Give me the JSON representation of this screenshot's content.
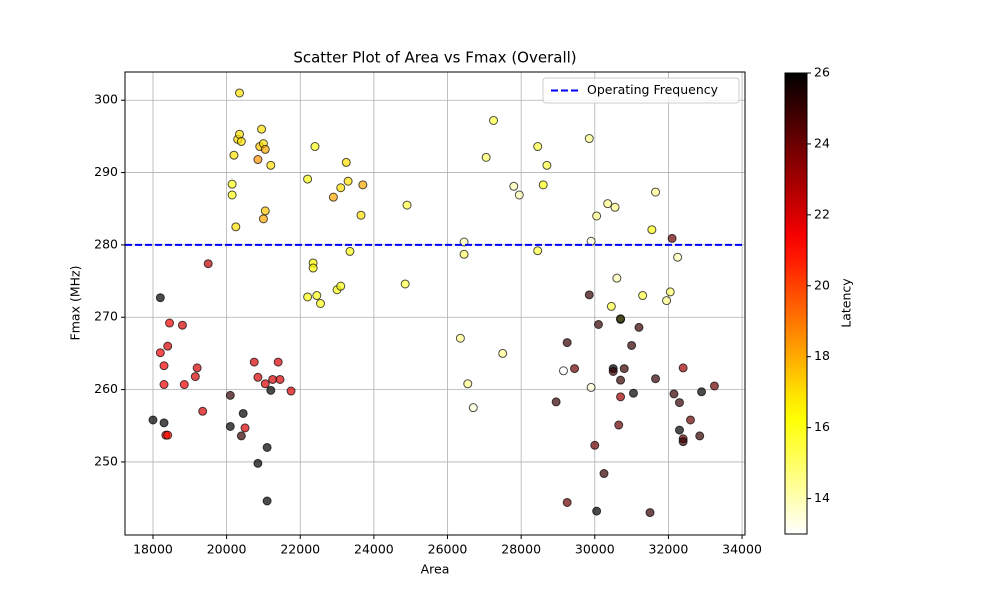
{
  "chart_data": {
    "type": "scatter",
    "title": "Scatter Plot of Area vs Fmax (Overall)",
    "xlabel": "Area",
    "ylabel": "Fmax (MHz)",
    "x": [
      18200,
      18300,
      18300,
      18400,
      18450,
      18800,
      18850,
      19150,
      19200,
      19350,
      19500,
      18350,
      18400,
      18000,
      18300,
      18200,
      20100,
      20100,
      20400,
      20450,
      20500,
      20850,
      21100,
      21100,
      21200,
      20750,
      20850,
      21050,
      21250,
      21400,
      21450,
      21750,
      20150,
      20150,
      20200,
      20250,
      20300,
      20350,
      20350,
      20400,
      20850,
      20900,
      20950,
      21000,
      21000,
      21050,
      21050,
      21200,
      22200,
      22200,
      22350,
      22350,
      22400,
      22450,
      22550,
      22900,
      23000,
      23100,
      23100,
      23250,
      23300,
      23350,
      23650,
      23700,
      24850,
      24900,
      26350,
      26450,
      26450,
      26550,
      26700,
      27050,
      27250,
      27500,
      27800,
      27950,
      28450,
      28450,
      28600,
      28700,
      29850,
      29900,
      30050,
      30350,
      30550,
      30600,
      30450,
      30700,
      31300,
      31550,
      31650,
      31950,
      32050,
      32250,
      29150,
      29900,
      28950,
      29250,
      29250,
      29450,
      29850,
      30000,
      30050,
      30100,
      30250,
      30500,
      30500,
      30650,
      30700,
      30700,
      30700,
      30800,
      31000,
      31050,
      31200,
      31500,
      31650,
      32100,
      32150,
      32300,
      32300,
      32400,
      32400,
      32400,
      32600,
      32850,
      32900,
      33250
    ],
    "y": [
      265.1,
      263.3,
      260.7,
      266,
      269.2,
      268.9,
      260.7,
      261.8,
      263,
      257,
      277.4,
      253.7,
      253.7,
      255.8,
      255.4,
      272.7,
      259.2,
      254.9,
      253.6,
      256.7,
      254.7,
      249.8,
      252,
      244.6,
      259.9,
      263.8,
      261.7,
      260.8,
      261.4,
      263.8,
      261.4,
      259.8,
      286.9,
      288.4,
      292.4,
      282.5,
      294.6,
      295.3,
      301,
      294.3,
      291.8,
      293.6,
      296,
      294,
      283.6,
      293.2,
      284.7,
      291,
      289.1,
      272.8,
      277.5,
      276.8,
      293.6,
      273,
      271.9,
      286.6,
      273.8,
      274.3,
      287.9,
      291.4,
      288.8,
      279.1,
      284.1,
      288.3,
      274.6,
      285.5,
      267.1,
      280.4,
      278.7,
      260.8,
      257.5,
      292.1,
      297.2,
      265,
      288.1,
      286.9,
      293.6,
      279.2,
      288.3,
      291,
      294.7,
      280.5,
      284,
      285.7,
      285.2,
      275.4,
      271.5,
      269.8,
      273,
      282.1,
      287.3,
      272.3,
      273.5,
      278.3,
      262.6,
      260.3,
      258.3,
      266.5,
      244.4,
      262.9,
      273.1,
      252.3,
      243.2,
      269,
      248.4,
      262.9,
      262.5,
      255.1,
      259,
      261.3,
      269.7,
      262.9,
      266.1,
      259.5,
      268.6,
      243,
      261.5,
      280.9,
      259.4,
      258.2,
      254.4,
      263,
      253.2,
      252.8,
      255.8,
      253.6,
      259.7,
      260.5
    ],
    "color_values": [
      21.5,
      21.5,
      21.5,
      22,
      21.5,
      22,
      21.5,
      22,
      22,
      22,
      22.5,
      22,
      21,
      26,
      26,
      26,
      25,
      26,
      25,
      26,
      22,
      26,
      26,
      26,
      26,
      22,
      22,
      22,
      22,
      22,
      22,
      22,
      16,
      16,
      17,
      17,
      17,
      17,
      17,
      17,
      18.5,
      17.5,
      17,
      17,
      18,
      18,
      17.5,
      17,
      16,
      16,
      16.5,
      16.5,
      16,
      16,
      16,
      18,
      16,
      16,
      17,
      17,
      17,
      16,
      17,
      18,
      15.5,
      15.5,
      14.5,
      14,
      15,
      14.5,
      13.5,
      15,
      15.5,
      14.5,
      14,
      14,
      15.5,
      15.5,
      16,
      15.5,
      14.5,
      13.5,
      14.5,
      14.5,
      14.5,
      14,
      15.5,
      15.5,
      15.5,
      16,
      14.5,
      14.5,
      15,
      14,
      13,
      13.5,
      25,
      25,
      24,
      24,
      25,
      24,
      26,
      25,
      25,
      26,
      25,
      24,
      23,
      25,
      26,
      25,
      25,
      26,
      25,
      25,
      25,
      24,
      25,
      25,
      26,
      23,
      24,
      25,
      24,
      25,
      26,
      24
    ],
    "xlim": [
      17240,
      34080
    ],
    "ylim": [
      239.9,
      303.9
    ],
    "xticks": [
      18000,
      20000,
      22000,
      24000,
      26000,
      28000,
      30000,
      32000,
      34000
    ],
    "yticks": [
      250,
      260,
      270,
      280,
      290,
      300
    ],
    "grid": true,
    "colormap": "hot_r",
    "colorbar": {
      "label": "Latency",
      "lim": [
        13,
        26
      ],
      "ticks": [
        14,
        16,
        18,
        20,
        22,
        24,
        26
      ]
    },
    "reference_line": {
      "value": 280,
      "label": "Operating Frequency",
      "color": "#0000ff",
      "style": "dashed"
    },
    "legend": "upper right"
  }
}
